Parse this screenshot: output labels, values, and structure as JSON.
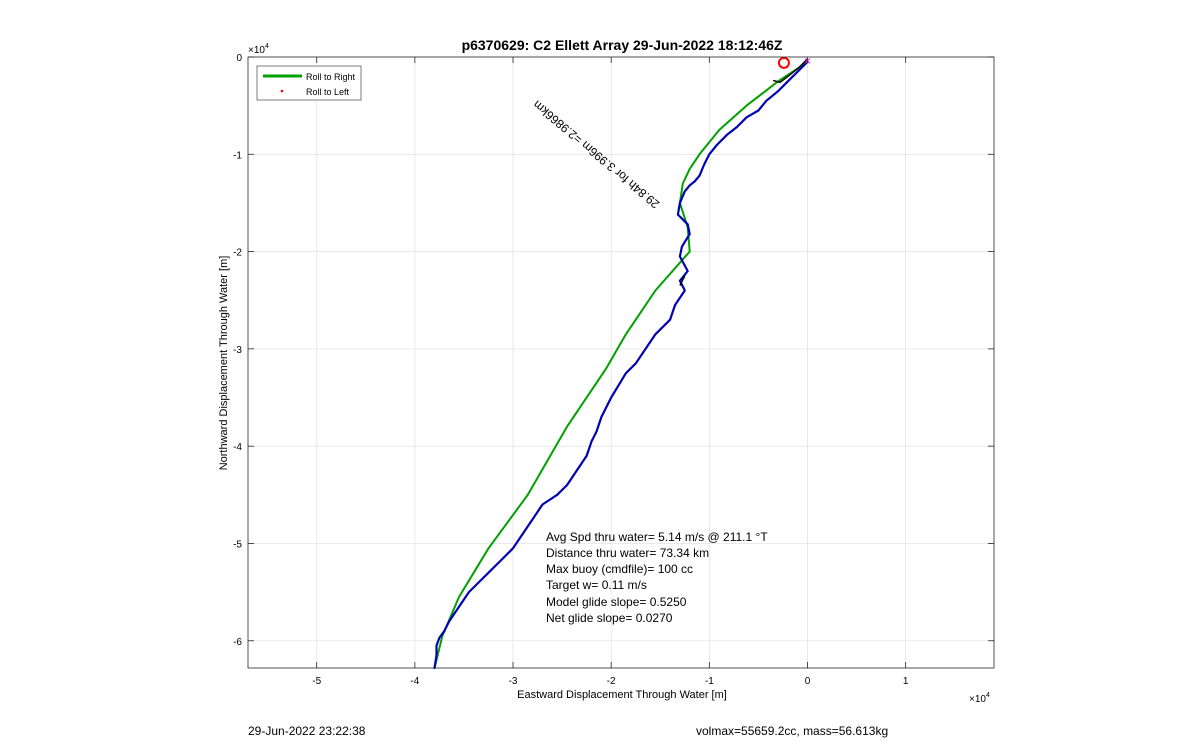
{
  "chart_data": {
    "type": "line",
    "title": "p6370629: C2 Ellett Array 29-Jun-2022 18:12:46Z",
    "xlabel": "Eastward Displacement Through Water [m]",
    "ylabel": "Northward Displacement Through Water [m]",
    "x_exponent_label": "×10",
    "x_exponent": "4",
    "y_exponent_label": "×10",
    "y_exponent": "4",
    "xlim": [
      -5.7,
      1.9
    ],
    "ylim": [
      -6.28,
      0
    ],
    "x_scale": 10000,
    "y_scale": 10000,
    "x_ticks": [
      -5,
      -4,
      -3,
      -2,
      -1,
      0,
      1
    ],
    "x_tick_labels": [
      "-5",
      "-4",
      "-3",
      "-2",
      "-1",
      "0",
      "1"
    ],
    "y_ticks": [
      0,
      -1,
      -2,
      -3,
      -4,
      -5,
      -6
    ],
    "y_tick_labels": [
      "0",
      "-1",
      "-2",
      "-3",
      "-4",
      "-5",
      "-6"
    ],
    "grid": true,
    "legend_position": "top-left",
    "legend": [
      {
        "label": "Roll to Right",
        "color": "#00a000",
        "style": "line"
      },
      {
        "label": "Roll to Left",
        "color": "#ff0000",
        "style": "dot"
      }
    ],
    "series": [
      {
        "name": "Roll to Right",
        "color": "#00a000",
        "x": [
          0.0,
          -0.3,
          -0.62,
          -0.9,
          -1.1,
          -1.2,
          -1.27,
          -1.3,
          -1.22,
          -1.2,
          -1.55,
          -1.85,
          -2.05,
          -2.45,
          -2.85,
          -3.25,
          -3.55,
          -3.72,
          -3.8
        ],
        "y": [
          -0.05,
          -0.25,
          -0.5,
          -0.75,
          -1.0,
          -1.15,
          -1.3,
          -1.5,
          -1.75,
          -2.0,
          -2.4,
          -2.85,
          -3.2,
          -3.8,
          -4.5,
          -5.05,
          -5.55,
          -5.95,
          -6.28
        ]
      },
      {
        "name": "",
        "color": "#0000b4",
        "x": [
          0.0,
          -0.1,
          -0.2,
          -0.3,
          -0.42,
          -0.5,
          -0.62,
          -0.72,
          -0.82,
          -0.92,
          -1.0,
          -1.05,
          -1.1,
          -1.15,
          -1.2,
          -1.25,
          -1.3,
          -1.32,
          -1.22,
          -1.2,
          -1.25,
          -1.28,
          -1.3,
          -1.22,
          -1.3,
          -1.25,
          -1.35,
          -1.4,
          -1.55,
          -1.75,
          -1.85,
          -2.0,
          -2.05,
          -2.1,
          -2.15,
          -2.2,
          -2.25,
          -2.35,
          -2.45,
          -2.55,
          -2.7,
          -2.8,
          -2.9,
          -3.0,
          -3.1,
          -3.25,
          -3.35,
          -3.45,
          -3.55,
          -3.65,
          -3.7,
          -3.75,
          -3.78,
          -3.78,
          -3.8
        ],
        "y": [
          -0.05,
          -0.15,
          -0.25,
          -0.35,
          -0.45,
          -0.55,
          -0.62,
          -0.72,
          -0.8,
          -0.9,
          -1.0,
          -1.1,
          -1.22,
          -1.28,
          -1.32,
          -1.38,
          -1.5,
          -1.62,
          -1.72,
          -1.82,
          -1.9,
          -1.95,
          -2.05,
          -2.2,
          -2.3,
          -2.4,
          -2.55,
          -2.7,
          -2.85,
          -3.15,
          -3.25,
          -3.5,
          -3.6,
          -3.7,
          -3.85,
          -3.95,
          -4.1,
          -4.25,
          -4.4,
          -4.5,
          -4.6,
          -4.75,
          -4.9,
          -5.05,
          -5.15,
          -5.3,
          -5.4,
          -5.5,
          -5.65,
          -5.8,
          -5.9,
          -5.97,
          -6.05,
          -6.15,
          -6.28
        ]
      }
    ],
    "overlays": [
      {
        "type": "line",
        "color": "#000000",
        "x": [
          0.0,
          -0.1,
          -0.2,
          -0.28,
          -0.35
        ],
        "y": [
          -0.02,
          -0.12,
          -0.2,
          -0.26,
          -0.24
        ]
      },
      {
        "type": "line",
        "color": "#000000",
        "x": [
          -1.25,
          -1.3
        ],
        "y": [
          -2.25,
          -2.35
        ]
      },
      {
        "type": "circle",
        "color": "#ff0000",
        "x": -0.24,
        "y": -0.06
      },
      {
        "type": "marker",
        "symbol": "×",
        "color": "#ff00ff",
        "x": 0.0,
        "y": -0.04
      }
    ],
    "rotated_annotation": {
      "text": "29.84h for 3.996m =2.9866km",
      "x": -1.5,
      "y": -1.5,
      "angle_deg": -140
    },
    "annotations": [
      "Avg Spd thru water=  5.14 m/s @ 211.1 °T",
      "Distance thru water= 73.34 km",
      "Max buoy (cmdfile)= 100 cc",
      "Target w= 0.11 m/s",
      "Model glide slope= 0.5250",
      "Net glide slope= 0.0270"
    ]
  },
  "footer": {
    "left": "29-Jun-2022 23:22:38",
    "right": "volmax=55659.2cc, mass=56.613kg"
  }
}
